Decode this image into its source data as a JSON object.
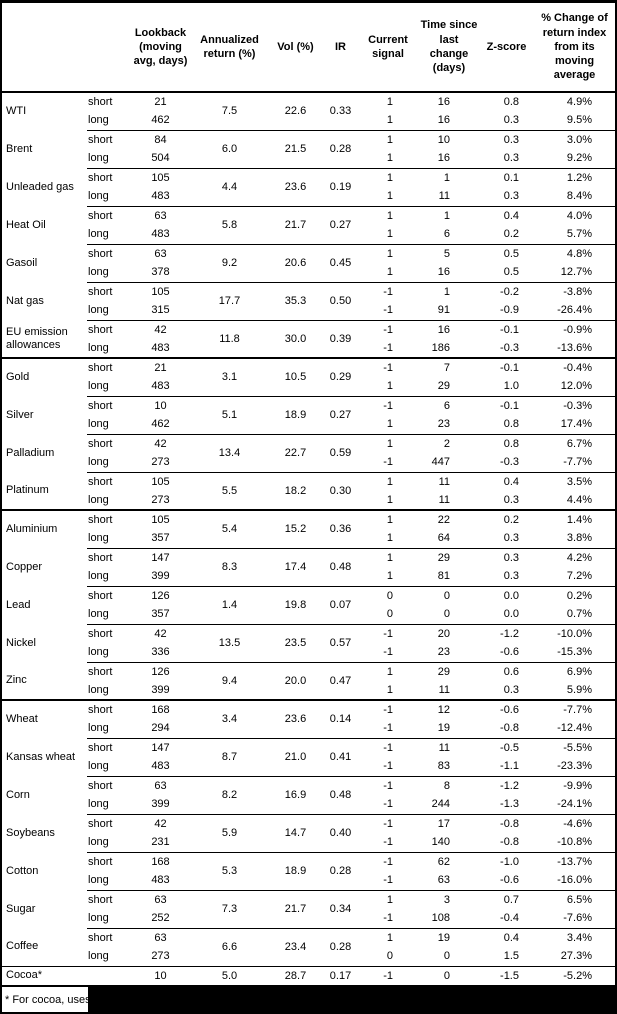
{
  "page": {
    "footnote_visible_text": "* For cocoa, uses"
  },
  "table": {
    "column_headers": [
      "",
      "",
      "Lookback (moving avg, days)",
      "Annualized return (%)",
      "Vol (%)",
      "IR",
      "Current signal",
      "Time since last change (days)",
      "Z-score",
      "% Change of return index from its moving average"
    ],
    "sections": [
      {
        "commodities": [
          {
            "name": "WTI",
            "annualized_return": "7.5",
            "vol_pct": "22.6",
            "ir": "0.33",
            "legs": [
              {
                "horizon": "short",
                "lookback_days": "21",
                "current_signal": "1",
                "days_since_change": "16",
                "z_score": "0.8",
                "pct_change_from_ma": "4.9%"
              },
              {
                "horizon": "long",
                "lookback_days": "462",
                "current_signal": "1",
                "days_since_change": "16",
                "z_score": "0.3",
                "pct_change_from_ma": "9.5%"
              }
            ]
          },
          {
            "name": "Brent",
            "annualized_return": "6.0",
            "vol_pct": "21.5",
            "ir": "0.28",
            "legs": [
              {
                "horizon": "short",
                "lookback_days": "84",
                "current_signal": "1",
                "days_since_change": "10",
                "z_score": "0.3",
                "pct_change_from_ma": "3.0%"
              },
              {
                "horizon": "long",
                "lookback_days": "504",
                "current_signal": "1",
                "days_since_change": "16",
                "z_score": "0.3",
                "pct_change_from_ma": "9.2%"
              }
            ]
          },
          {
            "name": "Unleaded gas",
            "annualized_return": "4.4",
            "vol_pct": "23.6",
            "ir": "0.19",
            "legs": [
              {
                "horizon": "short",
                "lookback_days": "105",
                "current_signal": "1",
                "days_since_change": "1",
                "z_score": "0.1",
                "pct_change_from_ma": "1.2%"
              },
              {
                "horizon": "long",
                "lookback_days": "483",
                "current_signal": "1",
                "days_since_change": "11",
                "z_score": "0.3",
                "pct_change_from_ma": "8.4%"
              }
            ]
          },
          {
            "name": "Heat Oil",
            "annualized_return": "5.8",
            "vol_pct": "21.7",
            "ir": "0.27",
            "legs": [
              {
                "horizon": "short",
                "lookback_days": "63",
                "current_signal": "1",
                "days_since_change": "1",
                "z_score": "0.4",
                "pct_change_from_ma": "4.0%"
              },
              {
                "horizon": "long",
                "lookback_days": "483",
                "current_signal": "1",
                "days_since_change": "6",
                "z_score": "0.2",
                "pct_change_from_ma": "5.7%"
              }
            ]
          },
          {
            "name": "Gasoil",
            "annualized_return": "9.2",
            "vol_pct": "20.6",
            "ir": "0.45",
            "legs": [
              {
                "horizon": "short",
                "lookback_days": "63",
                "current_signal": "1",
                "days_since_change": "5",
                "z_score": "0.5",
                "pct_change_from_ma": "4.8%"
              },
              {
                "horizon": "long",
                "lookback_days": "378",
                "current_signal": "1",
                "days_since_change": "16",
                "z_score": "0.5",
                "pct_change_from_ma": "12.7%"
              }
            ]
          },
          {
            "name": "Nat gas",
            "annualized_return": "17.7",
            "vol_pct": "35.3",
            "ir": "0.50",
            "legs": [
              {
                "horizon": "short",
                "lookback_days": "105",
                "current_signal": "-1",
                "days_since_change": "1",
                "z_score": "-0.2",
                "pct_change_from_ma": "-3.8%"
              },
              {
                "horizon": "long",
                "lookback_days": "315",
                "current_signal": "-1",
                "days_since_change": "91",
                "z_score": "-0.9",
                "pct_change_from_ma": "-26.4%"
              }
            ]
          },
          {
            "name": "EU emission allowances",
            "annualized_return": "11.8",
            "vol_pct": "30.0",
            "ir": "0.39",
            "legs": [
              {
                "horizon": "short",
                "lookback_days": "42",
                "current_signal": "-1",
                "days_since_change": "16",
                "z_score": "-0.1",
                "pct_change_from_ma": "-0.9%"
              },
              {
                "horizon": "long",
                "lookback_days": "483",
                "current_signal": "-1",
                "days_since_change": "186",
                "z_score": "-0.3",
                "pct_change_from_ma": "-13.6%"
              }
            ]
          }
        ]
      },
      {
        "commodities": [
          {
            "name": "Gold",
            "annualized_return": "3.1",
            "vol_pct": "10.5",
            "ir": "0.29",
            "legs": [
              {
                "horizon": "short",
                "lookback_days": "21",
                "current_signal": "-1",
                "days_since_change": "7",
                "z_score": "-0.1",
                "pct_change_from_ma": "-0.4%"
              },
              {
                "horizon": "long",
                "lookback_days": "483",
                "current_signal": "1",
                "days_since_change": "29",
                "z_score": "1.0",
                "pct_change_from_ma": "12.0%"
              }
            ]
          },
          {
            "name": "Silver",
            "annualized_return": "5.1",
            "vol_pct": "18.9",
            "ir": "0.27",
            "legs": [
              {
                "horizon": "short",
                "lookback_days": "10",
                "current_signal": "-1",
                "days_since_change": "6",
                "z_score": "-0.1",
                "pct_change_from_ma": "-0.3%"
              },
              {
                "horizon": "long",
                "lookback_days": "462",
                "current_signal": "1",
                "days_since_change": "23",
                "z_score": "0.8",
                "pct_change_from_ma": "17.4%"
              }
            ]
          },
          {
            "name": "Palladium",
            "annualized_return": "13.4",
            "vol_pct": "22.7",
            "ir": "0.59",
            "legs": [
              {
                "horizon": "short",
                "lookback_days": "42",
                "current_signal": "1",
                "days_since_change": "2",
                "z_score": "0.8",
                "pct_change_from_ma": "6.7%"
              },
              {
                "horizon": "long",
                "lookback_days": "273",
                "current_signal": "-1",
                "days_since_change": "447",
                "z_score": "-0.3",
                "pct_change_from_ma": "-7.7%"
              }
            ]
          },
          {
            "name": "Platinum",
            "annualized_return": "5.5",
            "vol_pct": "18.2",
            "ir": "0.30",
            "legs": [
              {
                "horizon": "short",
                "lookback_days": "105",
                "current_signal": "1",
                "days_since_change": "11",
                "z_score": "0.4",
                "pct_change_from_ma": "3.5%"
              },
              {
                "horizon": "long",
                "lookback_days": "273",
                "current_signal": "1",
                "days_since_change": "11",
                "z_score": "0.3",
                "pct_change_from_ma": "4.4%"
              }
            ]
          }
        ]
      },
      {
        "commodities": [
          {
            "name": "Aluminium",
            "annualized_return": "5.4",
            "vol_pct": "15.2",
            "ir": "0.36",
            "legs": [
              {
                "horizon": "short",
                "lookback_days": "105",
                "current_signal": "1",
                "days_since_change": "22",
                "z_score": "0.2",
                "pct_change_from_ma": "1.4%"
              },
              {
                "horizon": "long",
                "lookback_days": "357",
                "current_signal": "1",
                "days_since_change": "64",
                "z_score": "0.3",
                "pct_change_from_ma": "3.8%"
              }
            ]
          },
          {
            "name": "Copper",
            "annualized_return": "8.3",
            "vol_pct": "17.4",
            "ir": "0.48",
            "legs": [
              {
                "horizon": "short",
                "lookback_days": "147",
                "current_signal": "1",
                "days_since_change": "29",
                "z_score": "0.3",
                "pct_change_from_ma": "4.2%"
              },
              {
                "horizon": "long",
                "lookback_days": "399",
                "current_signal": "1",
                "days_since_change": "81",
                "z_score": "0.3",
                "pct_change_from_ma": "7.2%"
              }
            ]
          },
          {
            "name": "Lead",
            "annualized_return": "1.4",
            "vol_pct": "19.8",
            "ir": "0.07",
            "legs": [
              {
                "horizon": "short",
                "lookback_days": "126",
                "current_signal": "0",
                "days_since_change": "0",
                "z_score": "0.0",
                "pct_change_from_ma": "0.2%"
              },
              {
                "horizon": "long",
                "lookback_days": "357",
                "current_signal": "0",
                "days_since_change": "0",
                "z_score": "0.0",
                "pct_change_from_ma": "0.7%"
              }
            ]
          },
          {
            "name": "Nickel",
            "annualized_return": "13.5",
            "vol_pct": "23.5",
            "ir": "0.57",
            "legs": [
              {
                "horizon": "short",
                "lookback_days": "42",
                "current_signal": "-1",
                "days_since_change": "20",
                "z_score": "-1.2",
                "pct_change_from_ma": "-10.0%"
              },
              {
                "horizon": "long",
                "lookback_days": "336",
                "current_signal": "-1",
                "days_since_change": "23",
                "z_score": "-0.6",
                "pct_change_from_ma": "-15.3%"
              }
            ]
          },
          {
            "name": "Zinc",
            "annualized_return": "9.4",
            "vol_pct": "20.0",
            "ir": "0.47",
            "legs": [
              {
                "horizon": "short",
                "lookback_days": "126",
                "current_signal": "1",
                "days_since_change": "29",
                "z_score": "0.6",
                "pct_change_from_ma": "6.9%"
              },
              {
                "horizon": "long",
                "lookback_days": "399",
                "current_signal": "1",
                "days_since_change": "11",
                "z_score": "0.3",
                "pct_change_from_ma": "5.9%"
              }
            ]
          }
        ]
      },
      {
        "commodities": [
          {
            "name": "Wheat",
            "annualized_return": "3.4",
            "vol_pct": "23.6",
            "ir": "0.14",
            "legs": [
              {
                "horizon": "short",
                "lookback_days": "168",
                "current_signal": "-1",
                "days_since_change": "12",
                "z_score": "-0.6",
                "pct_change_from_ma": "-7.7%"
              },
              {
                "horizon": "long",
                "lookback_days": "294",
                "current_signal": "-1",
                "days_since_change": "19",
                "z_score": "-0.8",
                "pct_change_from_ma": "-12.4%"
              }
            ]
          },
          {
            "name": "Kansas wheat",
            "annualized_return": "8.7",
            "vol_pct": "21.0",
            "ir": "0.41",
            "legs": [
              {
                "horizon": "short",
                "lookback_days": "147",
                "current_signal": "-1",
                "days_since_change": "11",
                "z_score": "-0.5",
                "pct_change_from_ma": "-5.5%"
              },
              {
                "horizon": "long",
                "lookback_days": "483",
                "current_signal": "-1",
                "days_since_change": "83",
                "z_score": "-1.1",
                "pct_change_from_ma": "-23.3%"
              }
            ]
          },
          {
            "name": "Corn",
            "annualized_return": "8.2",
            "vol_pct": "16.9",
            "ir": "0.48",
            "legs": [
              {
                "horizon": "short",
                "lookback_days": "63",
                "current_signal": "-1",
                "days_since_change": "8",
                "z_score": "-1.2",
                "pct_change_from_ma": "-9.9%"
              },
              {
                "horizon": "long",
                "lookback_days": "399",
                "current_signal": "-1",
                "days_since_change": "244",
                "z_score": "-1.3",
                "pct_change_from_ma": "-24.1%"
              }
            ]
          },
          {
            "name": "Soybeans",
            "annualized_return": "5.9",
            "vol_pct": "14.7",
            "ir": "0.40",
            "legs": [
              {
                "horizon": "short",
                "lookback_days": "42",
                "current_signal": "-1",
                "days_since_change": "17",
                "z_score": "-0.8",
                "pct_change_from_ma": "-4.6%"
              },
              {
                "horizon": "long",
                "lookback_days": "231",
                "current_signal": "-1",
                "days_since_change": "140",
                "z_score": "-0.8",
                "pct_change_from_ma": "-10.8%"
              }
            ]
          },
          {
            "name": "Cotton",
            "annualized_return": "5.3",
            "vol_pct": "18.9",
            "ir": "0.28",
            "legs": [
              {
                "horizon": "short",
                "lookback_days": "168",
                "current_signal": "-1",
                "days_since_change": "62",
                "z_score": "-1.0",
                "pct_change_from_ma": "-13.7%"
              },
              {
                "horizon": "long",
                "lookback_days": "483",
                "current_signal": "-1",
                "days_since_change": "63",
                "z_score": "-0.6",
                "pct_change_from_ma": "-16.0%"
              }
            ]
          },
          {
            "name": "Sugar",
            "annualized_return": "7.3",
            "vol_pct": "21.7",
            "ir": "0.34",
            "legs": [
              {
                "horizon": "short",
                "lookback_days": "63",
                "current_signal": "1",
                "days_since_change": "3",
                "z_score": "0.7",
                "pct_change_from_ma": "6.5%"
              },
              {
                "horizon": "long",
                "lookback_days": "252",
                "current_signal": "-1",
                "days_since_change": "108",
                "z_score": "-0.4",
                "pct_change_from_ma": "-7.6%"
              }
            ]
          },
          {
            "name": "Coffee",
            "annualized_return": "6.6",
            "vol_pct": "23.4",
            "ir": "0.28",
            "legs": [
              {
                "horizon": "short",
                "lookback_days": "63",
                "current_signal": "1",
                "days_since_change": "19",
                "z_score": "0.4",
                "pct_change_from_ma": "3.4%"
              },
              {
                "horizon": "long",
                "lookback_days": "273",
                "current_signal": "0",
                "days_since_change": "0",
                "z_score": "1.5",
                "pct_change_from_ma": "27.3%"
              }
            ]
          },
          {
            "name": "Cocoa*",
            "annualized_return": "5.0",
            "vol_pct": "28.7",
            "ir": "0.17",
            "full_width_separator": true,
            "legs": [
              {
                "horizon": "",
                "lookback_days": "10",
                "current_signal": "-1",
                "days_since_change": "0",
                "z_score": "-1.5",
                "pct_change_from_ma": "-5.2%"
              }
            ]
          }
        ]
      }
    ]
  }
}
